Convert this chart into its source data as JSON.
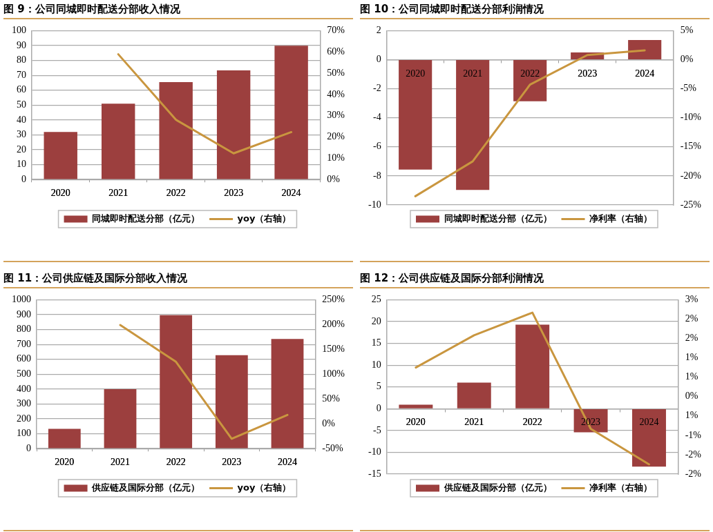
{
  "chart_data": [
    {
      "type": "bar",
      "title": "图 9：公司同城即时配送分部收入情况",
      "categories": [
        "2020",
        "2021",
        "2022",
        "2023",
        "2024"
      ],
      "series": [
        {
          "name": "同城即时配送分部（亿元）",
          "color": "#9c3f3e",
          "values": [
            32.0,
            51.0,
            65.4,
            73.3,
            89.9
          ]
        },
        {
          "name": "yoy（右轴）",
          "type": "line",
          "axis": "y2",
          "color": "#c9963f",
          "values": [
            null,
            58.9,
            28.1,
            12.3,
            22.3
          ]
        }
      ],
      "ylim": [
        0,
        100
      ],
      "yticks": [
        0,
        10,
        20,
        30,
        40,
        50,
        60,
        70,
        80,
        90,
        100
      ],
      "y2lim": [
        0,
        70
      ],
      "y2ticks": [
        {
          "value": 0,
          "label": "0%"
        },
        {
          "value": 10,
          "label": "10%"
        },
        {
          "value": 20,
          "label": "20%"
        },
        {
          "value": 30,
          "label": "30%"
        },
        {
          "value": 40,
          "label": "40%"
        },
        {
          "value": 50,
          "label": "50%"
        },
        {
          "value": 60,
          "label": "60%"
        },
        {
          "value": 70,
          "label": "70%"
        }
      ],
      "grid": "y",
      "legend": "bottom",
      "marker": "none"
    },
    {
      "type": "bar",
      "title": "图 10：公司同城即时配送分部利润情况",
      "categories": [
        "2020",
        "2021",
        "2022",
        "2023",
        "2024"
      ],
      "series": [
        {
          "name": "同城即时配送分部（亿元）",
          "color": "#9c3f3e",
          "values": [
            -7.56,
            -8.97,
            -2.86,
            0.5,
            1.35
          ]
        },
        {
          "name": "净利率（右轴）",
          "type": "line",
          "axis": "y2",
          "color": "#c9963f",
          "values": [
            -23.5,
            -17.5,
            -4.3,
            0.8,
            1.6
          ]
        }
      ],
      "ylim": [
        -10,
        2
      ],
      "yticks": [
        -10,
        -8,
        -6,
        -4,
        -2,
        0,
        2
      ],
      "y2lim": [
        -25,
        5
      ],
      "y2ticks": [
        {
          "value": -25,
          "label": "-25%"
        },
        {
          "value": -20,
          "label": "-20%"
        },
        {
          "value": -15,
          "label": "-15%"
        },
        {
          "value": -10,
          "label": "-10%"
        },
        {
          "value": -5,
          "label": "-5%"
        },
        {
          "value": 0,
          "label": "0%"
        },
        {
          "value": 5,
          "label": "5%"
        }
      ],
      "grid": "y",
      "legend": "bottom",
      "marker": "none"
    },
    {
      "type": "bar",
      "title": "图 11：公司供应链及国际分部收入情况",
      "categories": [
        "2020",
        "2021",
        "2022",
        "2023",
        "2024"
      ],
      "series": [
        {
          "name": "供应链及国际分部（亿元）",
          "color": "#9c3f3e",
          "values": [
            133,
            400,
            897,
            628,
            736
          ]
        },
        {
          "name": "yoy（右轴）",
          "type": "line",
          "axis": "y2",
          "color": "#c9963f",
          "values": [
            null,
            199,
            125,
            -30,
            18
          ]
        }
      ],
      "ylim": [
        0,
        1000
      ],
      "yticks": [
        0,
        100,
        200,
        300,
        400,
        500,
        600,
        700,
        800,
        900,
        1000
      ],
      "y2lim": [
        -50,
        250
      ],
      "y2ticks": [
        {
          "value": -50,
          "label": "-50%"
        },
        {
          "value": 0,
          "label": "0%"
        },
        {
          "value": 50,
          "label": "50%"
        },
        {
          "value": 100,
          "label": "100%"
        },
        {
          "value": 150,
          "label": "150%"
        },
        {
          "value": 200,
          "label": "200%"
        },
        {
          "value": 250,
          "label": "250%"
        }
      ],
      "grid": "y",
      "legend": "bottom",
      "marker": "none"
    },
    {
      "type": "bar",
      "title": "图 12：公司供应链及国际分部利润情况",
      "categories": [
        "2020",
        "2021",
        "2022",
        "2023",
        "2024"
      ],
      "series": [
        {
          "name": "供应链及国际分部（亿元）",
          "color": "#9c3f3e",
          "values": [
            0.9,
            6.0,
            19.3,
            -5.4,
            -13.3
          ]
        },
        {
          "name": "净利率（右轴）",
          "type": "line",
          "axis": "y2",
          "color": "#c9963f",
          "values": [
            0.9,
            1.9,
            2.6,
            -1.0,
            -2.1
          ]
        }
      ],
      "ylim": [
        -15,
        25
      ],
      "yticks": [
        -15,
        -10,
        -5,
        0,
        5,
        10,
        15,
        20,
        25
      ],
      "y2lim": [
        -2.4,
        3
      ],
      "y2ticks": [
        {
          "value": -2.4,
          "label": "-2%"
        },
        {
          "value": -1.8,
          "label": "-2%"
        },
        {
          "value": -1.2,
          "label": "-1%"
        },
        {
          "value": -0.6,
          "label": "1%"
        },
        {
          "value": 0,
          "label": "0%"
        },
        {
          "value": 0.6,
          "label": "1%"
        },
        {
          "value": 1.2,
          "label": "1%"
        },
        {
          "value": 1.8,
          "label": "2%"
        },
        {
          "value": 2.4,
          "label": "2%"
        },
        {
          "value": 3,
          "label": "3%"
        }
      ],
      "grid": "y",
      "legend": "bottom",
      "marker": "none"
    }
  ]
}
